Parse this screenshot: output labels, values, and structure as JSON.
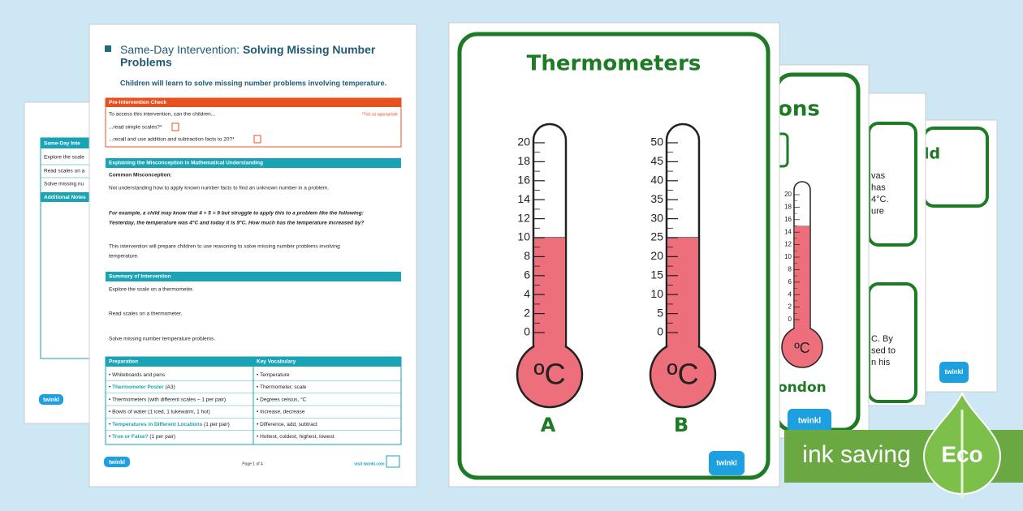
{
  "brand": {
    "logo": "twinkl"
  },
  "doc_back": {
    "header": "Same-Day Inte",
    "rows": [
      "Explore the scale",
      "Read scales on a",
      "Solve missing nu"
    ],
    "notes": "Additional Notes"
  },
  "doc_front": {
    "title_light": "Same-Day Intervention:",
    "title_bold": "Solving Missing Number",
    "title_bold_2": "Problems",
    "subtitle": "Children will learn to solve missing number problems involving temperature.",
    "pre_check": {
      "heading": "Pre-Intervention Check",
      "intro": "To access this intervention, can the children...",
      "note": "*Tick as appropriate",
      "items": [
        "...read simple scales?*",
        "...recall and use addition and subtraction facts to 20?*"
      ]
    },
    "misconception": {
      "heading": "Explaining the Misconception in Mathematical Understanding",
      "label": "Common Misconception:",
      "text": "Not understanding how to apply known number facts to find an unknown number in a problem.",
      "example": [
        "For example, a child may know that 4 + 5 = 9 but struggle to apply this to a problem like the following:",
        "Yesterday, the temperature was 4°C and today it is 9°C. How much has the temperature increased by?"
      ],
      "para": [
        "This intervention will prepare children to use reasoning to solve missing number problems involving",
        "temperature."
      ]
    },
    "summary": {
      "heading": "Summary of Intervention",
      "items": [
        "Explore the scale on a thermometer.",
        "Read scales on a thermometer.",
        "Solve missing number temperature problems."
      ]
    },
    "preparation": {
      "heading": "Preparation",
      "items": [
        {
          "text": "Whiteboards and pens"
        },
        {
          "link": "Thermometer Poster",
          "text": " (A3)"
        },
        {
          "text": "Thermometers (with different scales – 1 per pair)"
        },
        {
          "text": "Bowls of water (1 iced, 1 lukewarm, 1 hot)"
        },
        {
          "link": "Temperatures in Different Locations",
          "text": " (1 per pair)"
        },
        {
          "link": "True or False?",
          "text": " (1 per pair)"
        }
      ]
    },
    "vocabulary": {
      "heading": "Key Vocabulary",
      "items": [
        "Temperature",
        "Thermometer, scale",
        "Degrees celsius, °C",
        "Increase, decrease",
        "Difference, add, subtract",
        "Hottest, coldest, highest, lowest"
      ]
    },
    "footer": {
      "page": "Page 1 of 4",
      "site": "visit twinkl.com"
    }
  },
  "poster": {
    "title": "Thermometers",
    "thermometers": [
      {
        "scale": [
          20,
          18,
          16,
          14,
          12,
          10,
          8,
          6,
          4,
          2,
          0
        ],
        "unit": "ºC",
        "label": "A"
      },
      {
        "scale": [
          50,
          45,
          40,
          35,
          30,
          25,
          20,
          15,
          10,
          5,
          0
        ],
        "unit": "ºC",
        "label": "B"
      }
    ]
  },
  "back_cards": {
    "card2": {
      "title": "ons",
      "city": "ondon",
      "scale": [
        20,
        18,
        16,
        14,
        12,
        10,
        8,
        6,
        4,
        2,
        0
      ],
      "unit": "ºC"
    },
    "card3": {
      "top": [
        "vas",
        "has",
        "4°C.",
        "ure"
      ],
      "bottom": [
        "C. By",
        "sed to",
        "n his"
      ]
    },
    "card4": {
      "title": "ld"
    }
  },
  "badge": {
    "text": "ink saving",
    "eco": "Eco"
  }
}
